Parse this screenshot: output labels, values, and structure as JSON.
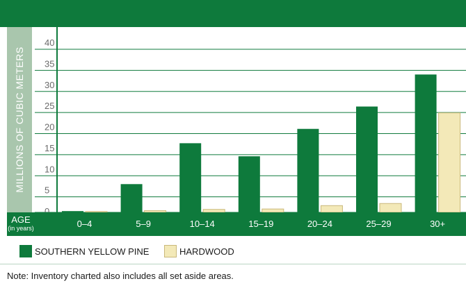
{
  "chart_data": {
    "type": "bar",
    "ylabel": "MILLIONS OF CUBIC METERS",
    "xlabel": "AGE",
    "xlabel_sub": "(in years)",
    "categories": [
      "0–4",
      "5–9",
      "10–14",
      "15–19",
      "20–24",
      "25–29",
      "30+"
    ],
    "series": [
      {
        "name": "SOUTHERN YELLOW PINE",
        "values": [
          0.3,
          6.7,
          16.4,
          13.3,
          19.8,
          25.1,
          32.7
        ]
      },
      {
        "name": "HARDWOOD",
        "values": [
          0.2,
          0.4,
          0.7,
          0.8,
          1.6,
          2.1,
          23.6
        ]
      }
    ],
    "ylim": [
      0,
      40
    ],
    "yticks": [
      0,
      5,
      10,
      15,
      20,
      25,
      30,
      35,
      40
    ],
    "grid": true,
    "legend_position": "bottom-left",
    "colors": {
      "pine": "#0e7a3c",
      "hardwood": "#f3e9b8",
      "hardwood_border": "#c9b87a",
      "axis_band": "#0e7a3c",
      "ylabel_band": "#a9c6ad"
    }
  },
  "legend": {
    "pine_label": "SOUTHERN YELLOW PINE",
    "hardwood_label": "HARDWOOD"
  },
  "note": "Note: Inventory charted also includes all set aside areas."
}
